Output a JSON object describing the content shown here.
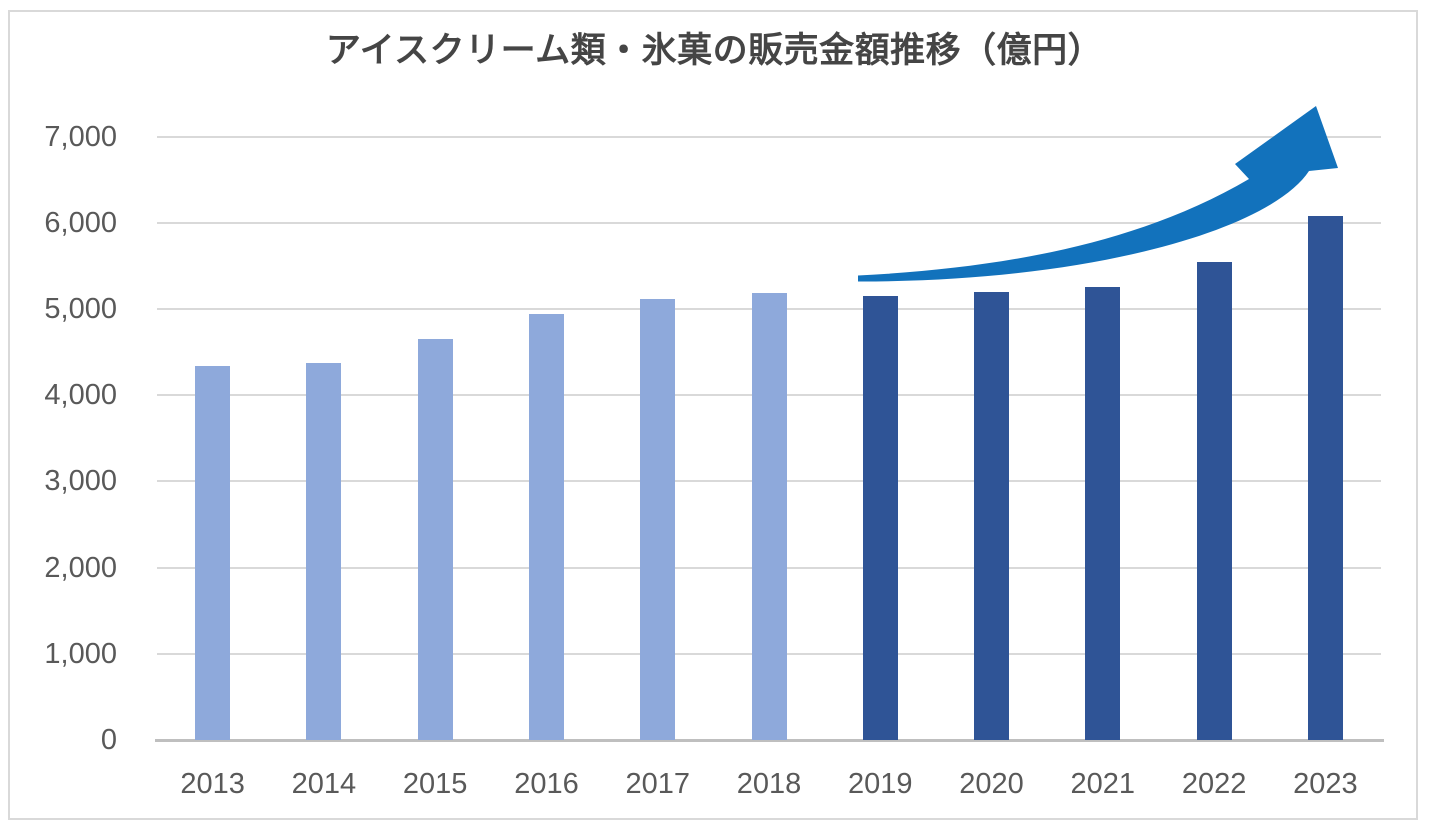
{
  "chart_data": {
    "type": "bar",
    "title": "アイスクリーム類・氷菓の販売金額推移（億円）",
    "categories": [
      "2013",
      "2014",
      "2015",
      "2016",
      "2017",
      "2018",
      "2019",
      "2020",
      "2021",
      "2022",
      "2023"
    ],
    "values": [
      4336,
      4369,
      4647,
      4939,
      5114,
      5186,
      5151,
      5197,
      5259,
      5545,
      6082
    ],
    "bar_colors": [
      "#8EA9DB",
      "#8EA9DB",
      "#8EA9DB",
      "#8EA9DB",
      "#8EA9DB",
      "#8EA9DB",
      "#2F5496",
      "#2F5496",
      "#2F5496",
      "#2F5496",
      "#2F5496"
    ],
    "xlabel": "",
    "ylabel": "",
    "ylim": [
      0,
      7000
    ],
    "ytick_interval": 1000,
    "y_tick_labels": [
      "0",
      "1,000",
      "2,000",
      "3,000",
      "4,000",
      "5,000",
      "6,000",
      "7,000"
    ],
    "grid": true,
    "legend": "none",
    "annotations": [
      {
        "name": "growth-arrow",
        "description": "upward curved swoosh arrow over the 2019-2023 bars",
        "color": "#1272BC"
      }
    ],
    "colors": {
      "light_bar": "#8EA9DB",
      "dark_bar": "#2F5496",
      "arrow": "#1272BC",
      "gridline": "#D9D9D9",
      "axis_line": "#BFBFBF",
      "label_text": "#595959",
      "title_text": "#454545",
      "frame_border": "#D9D9D9"
    }
  }
}
